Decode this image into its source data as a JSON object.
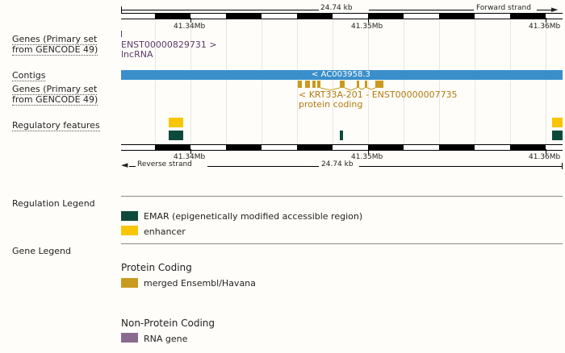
{
  "ruler_top": {
    "length": "24.74 kb",
    "strand": "Forward strand"
  },
  "ruler_bottom": {
    "length": "24.74 kb",
    "strand": "Reverse strand"
  },
  "coords": [
    "41.34Mb",
    "41.35Mb",
    "41.36Mb"
  ],
  "tracks": {
    "genes_top_label": "Genes (Primary set from GENCODE 49)",
    "contigs_label": "Contigs",
    "genes_bottom_label": "Genes (Primary set from GENCODE 49)",
    "regulatory_label": "Regulatory features"
  },
  "features": {
    "gene_top_name": "ENST00000829731 >",
    "gene_top_type": "lncRNA",
    "contig_name": "< AC003958.3",
    "gene_bottom_name": "< KRT33A-201 - ENST00000007735",
    "gene_bottom_type": "protein coding"
  },
  "regulation_legend": {
    "title": "Regulation Legend",
    "items": [
      {
        "label": "EMAR (epigenetically modified accessible region)",
        "color": "#0e4a3c"
      },
      {
        "label": "enhancer",
        "color": "#f7c600"
      }
    ]
  },
  "gene_legend": {
    "title": "Gene Legend",
    "protein_coding_title": "Protein Coding",
    "protein_coding_item": {
      "label": "merged Ensembl/Havana",
      "color": "#c99a1f"
    },
    "non_protein_coding_title": "Non-Protein Coding",
    "non_protein_coding_item": {
      "label": "RNA gene",
      "color": "#8a6a90"
    }
  },
  "colors": {
    "contig": "#3a8fca",
    "lncrna": "#5a3a6a",
    "protein_coding": "#c99a1f",
    "emar": "#0e4a3c",
    "enhancer": "#f7c600"
  }
}
